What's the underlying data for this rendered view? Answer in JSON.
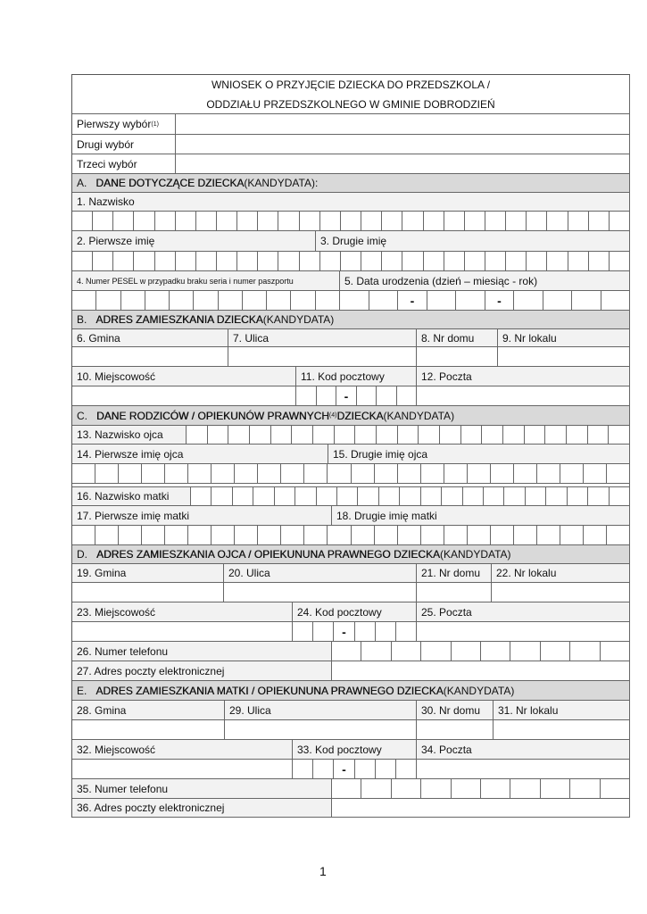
{
  "title": {
    "line1": "WNIOSEK O PRZYJĘCIE DZIECKA DO PRZEDSZKOLA /",
    "line2": "ODDZIAŁU PRZEDSZKOLNEGO W GMINIE DOBRODZIEŃ"
  },
  "choices": {
    "first": "Pierwszy wybór",
    "first_sup": "(1)",
    "second": "Drugi wybór",
    "third": "Trzeci wybór"
  },
  "sectionA": {
    "letter": "A.",
    "bold": "DANE DOTYCZĄCE DZIECKA",
    "rest": " (KANDYDATA):",
    "f1": "1. Nazwisko",
    "f2": "2. Pierwsze imię",
    "f3": "3. Drugie imię",
    "f4": "4. Numer PESEL w przypadku braku seria i numer paszportu",
    "f5": "5. Data urodzenia (dzień – miesiąc - rok)"
  },
  "sectionB": {
    "letter": "B.",
    "bold": "ADRES ZAMIESZKANIA DZIECKA",
    "rest": " (KANDYDATA)",
    "f6": "6. Gmina",
    "f7": "7. Ulica",
    "f8": "8. Nr domu",
    "f9": "9. Nr lokalu",
    "f10": "10. Miejscowość",
    "f11": "11. Kod pocztowy",
    "f12": "12. Poczta"
  },
  "sectionC": {
    "letter": "C.",
    "bold": "DANE RODZICÓW / OPIEKUNÓW PRAWNYCH",
    "sup": "(4)",
    "bold2": " DZIECKA",
    "rest": " (KANDYDATA)",
    "f13": "13.  Nazwisko ojca",
    "f14": "14. Pierwsze imię ojca",
    "f15": "15. Drugie imię ojca",
    "f16": "16. Nazwisko matki",
    "f17": "17. Pierwsze imię matki",
    "f18": "18. Drugie imię matki"
  },
  "sectionD": {
    "letter": "D.",
    "bold": "ADRES ZAMIESZKANIA OJCA / OPIEKUNUNA PRAWNEGO DZIECKA",
    "rest": " (KANDYDATA)",
    "f19": "19. Gmina",
    "f20": "20. Ulica",
    "f21": "21. Nr domu",
    "f22": "22. Nr lokalu",
    "f23": "23. Miejscowość",
    "f24": "24. Kod pocztowy",
    "f25": "25. Poczta",
    "f26": "26. Numer telefonu",
    "f27": "27. Adres poczty elektronicznej"
  },
  "sectionE": {
    "letter": "E.",
    "bold": "ADRES ZAMIESZKANIA MATKI / OPIEKUNUNA PRAWNEGO DZIECKA",
    "rest": " (KANDYDATA)",
    "f28": "28. Gmina",
    "f29": "29. Ulica",
    "f30": "30. Nr domu",
    "f31": "31. Nr lokalu",
    "f32": "32. Miejscowość",
    "f33": "33. Kod pocztowy",
    "f34": "34. Poczta",
    "f35": "35. Numer telefonu",
    "f36": "36. Adres poczty elektronicznej"
  },
  "dash": "-",
  "page_number": "1"
}
